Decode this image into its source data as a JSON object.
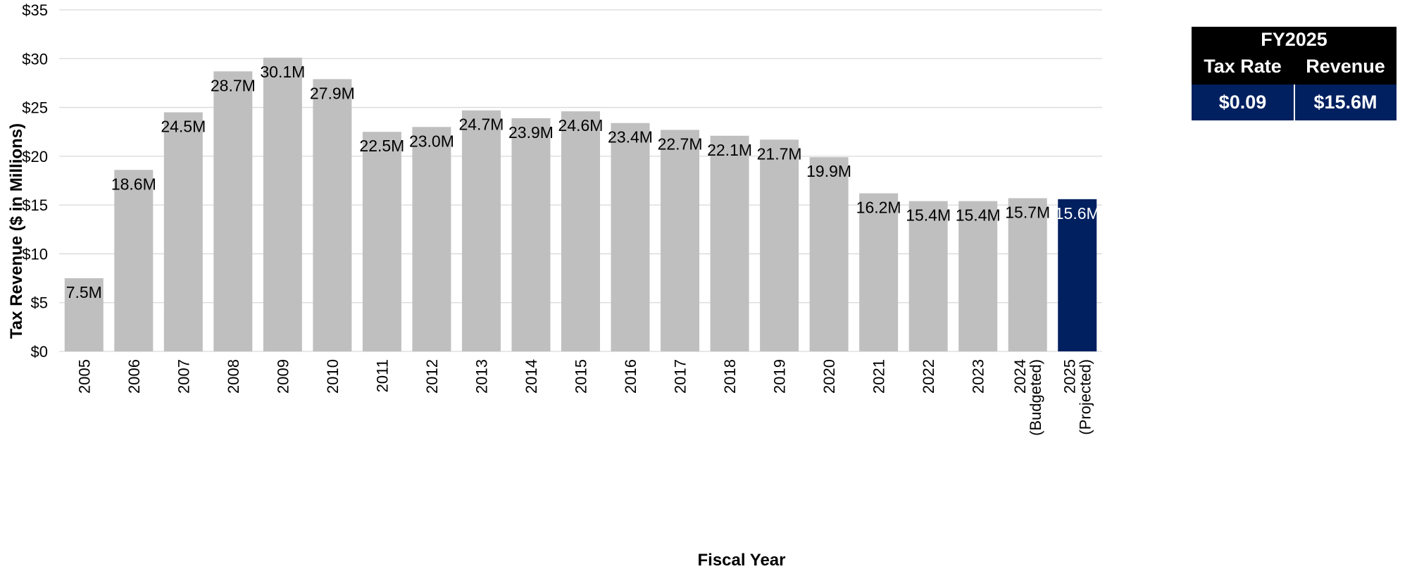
{
  "chart_data": {
    "type": "bar",
    "categories": [
      "2005",
      "2006",
      "2007",
      "2008",
      "2009",
      "2010",
      "2011",
      "2012",
      "2013",
      "2014",
      "2015",
      "2016",
      "2017",
      "2018",
      "2019",
      "2020",
      "2021",
      "2022",
      "2023",
      "2024\n(Budgeted)",
      "2025\n(Projected)"
    ],
    "values": [
      7.5,
      18.6,
      24.5,
      28.7,
      30.1,
      27.9,
      22.5,
      23.0,
      24.7,
      23.9,
      24.6,
      23.4,
      22.7,
      22.1,
      21.7,
      19.9,
      16.2,
      15.4,
      15.4,
      15.7,
      15.6
    ],
    "data_labels": [
      "7.5M",
      "18.6M",
      "24.5M",
      "28.7M",
      "30.1M",
      "27.9M",
      "22.5M",
      "23.0M",
      "24.7M",
      "23.9M",
      "24.6M",
      "23.4M",
      "22.7M",
      "22.1M",
      "21.7M",
      "19.9M",
      "16.2M",
      "15.4M",
      "15.4M",
      "15.7M",
      "15.6M"
    ],
    "highlight_index": 20,
    "xlabel": "Fiscal Year",
    "ylabel": "Tax Revenue ($ in Millions)",
    "ylim": [
      0,
      35
    ],
    "yticks": [
      0,
      5,
      10,
      15,
      20,
      25,
      30,
      35
    ],
    "ytick_labels": [
      "$0",
      "$5",
      "$10",
      "$15",
      "$20",
      "$25",
      "$30",
      "$35"
    ],
    "grid": true,
    "colors": {
      "bar": "#bfbfbf",
      "highlight": "#002060",
      "grid": "#d9d9d9"
    }
  },
  "callout": {
    "title": "FY2025",
    "col1_header": "Tax Rate",
    "col2_header": "Revenue",
    "col1_value": "$0.09",
    "col2_value": "$15.6M",
    "colors": {
      "header_bg": "#000000",
      "value_bg": "#002060"
    }
  }
}
